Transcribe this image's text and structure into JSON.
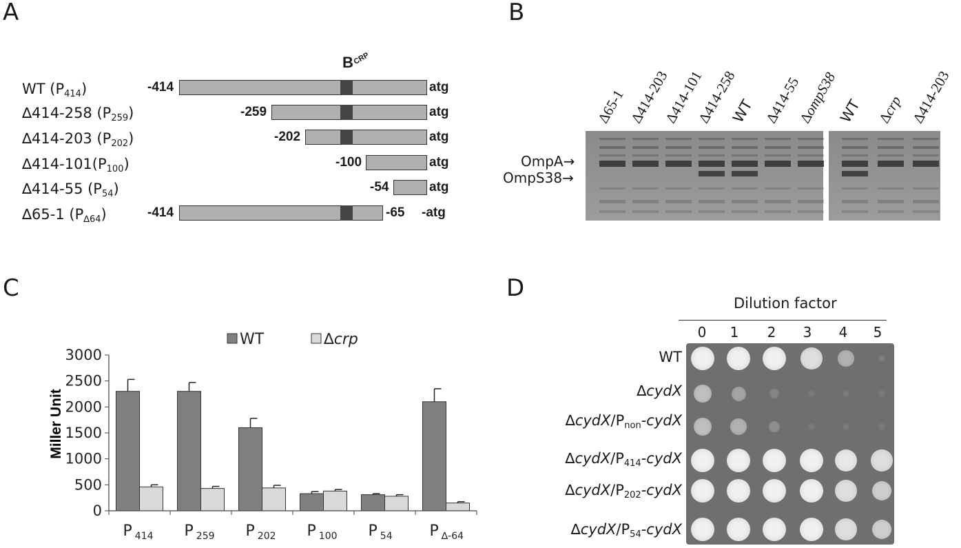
{
  "panels": {
    "a": "A",
    "b": "B",
    "c": "C",
    "d": "D"
  },
  "panel_a": {
    "crp_label": "B",
    "crp_sub": "CRP",
    "constructs": [
      {
        "name": "WT (P",
        "sub": "414",
        "tail": ")",
        "left_coord": "-414",
        "right_coord": "",
        "end": "atg"
      },
      {
        "name": "∆414-258 (P",
        "sub": "259",
        "tail": ")",
        "left_coord": "-259",
        "right_coord": "",
        "end": "atg"
      },
      {
        "name": "∆414-203 (P",
        "sub": "202",
        "tail": ")",
        "left_coord": "-202",
        "right_coord": "",
        "end": "atg"
      },
      {
        "name": "∆414-101(P",
        "sub": "100",
        "tail": ")",
        "left_coord": "-100",
        "right_coord": "",
        "end": "atg"
      },
      {
        "name": "∆414-55 (P",
        "sub": "54",
        "tail": ")",
        "left_coord": "-54",
        "right_coord": "",
        "end": "atg"
      },
      {
        "name": "∆65-1 (P",
        "sub": "∆64",
        "tail": ")",
        "left_coord": "-414",
        "right_coord": "-65",
        "end": "-atg"
      }
    ]
  },
  "panel_b": {
    "lanes_left": [
      "∆65-1",
      "∆414-203",
      "∆414-101",
      "∆414-258",
      "WT",
      "∆414-55",
      "∆ompS38"
    ],
    "lanes_right": [
      "WT",
      "∆crp",
      "∆414-203"
    ],
    "ompa_label": "OmpA",
    "omps38_label": "OmpS38"
  },
  "panel_d": {
    "dilution_title": "Dilution factor",
    "dilutions": [
      "0",
      "1",
      "2",
      "3",
      "4",
      "5"
    ],
    "strains": [
      {
        "pre": "WT",
        "sub": "",
        "post": ""
      },
      {
        "pre": "∆cydX",
        "sub": "",
        "post": ""
      },
      {
        "pre": "∆cydX/P",
        "sub": "non",
        "post": "-cydX"
      },
      {
        "pre": "∆cydX/P",
        "sub": "414",
        "post": "-cydX"
      },
      {
        "pre": "∆cydX/P",
        "sub": "202",
        "post": "-cydX"
      },
      {
        "pre": "∆cydX/P",
        "sub": "54",
        "post": "-cydX"
      }
    ],
    "growth": [
      [
        1,
        1,
        1,
        0.9,
        0.6,
        0.1
      ],
      [
        0.7,
        0.5,
        0.2,
        0.05,
        0.05,
        0.05
      ],
      [
        0.7,
        0.6,
        0.3,
        0.05,
        0.05,
        0.05
      ],
      [
        1,
        1,
        1,
        1,
        0.95,
        0.9
      ],
      [
        1,
        1,
        1,
        1,
        0.9,
        0.8
      ],
      [
        1,
        1,
        1,
        1,
        0.9,
        0.8
      ]
    ]
  },
  "chart_data": {
    "type": "bar",
    "categories": [
      "P414",
      "P259",
      "P202",
      "P100",
      "P54",
      "P∆-64"
    ],
    "category_labels": [
      {
        "base": "P",
        "sub": "414"
      },
      {
        "base": "P",
        "sub": "259"
      },
      {
        "base": "P",
        "sub": "202"
      },
      {
        "base": "P",
        "sub": "100"
      },
      {
        "base": "P",
        "sub": "54"
      },
      {
        "base": "P",
        "sub": "∆-64"
      }
    ],
    "series": [
      {
        "name": "WT",
        "values": [
          2300,
          2300,
          1600,
          330,
          310,
          2100
        ],
        "errors": [
          230,
          170,
          180,
          40,
          20,
          250
        ],
        "color": "#7f7f7f"
      },
      {
        "name": "∆crp",
        "values": [
          460,
          430,
          440,
          380,
          280,
          150
        ],
        "errors": [
          40,
          40,
          50,
          30,
          30,
          25
        ],
        "color": "#d9d9d9"
      }
    ],
    "ylabel": "Miller Unit",
    "ylim": [
      0,
      3000
    ],
    "yticks": [
      "0",
      "500",
      "1000",
      "1500",
      "2000",
      "2500",
      "3000"
    ],
    "grid": false,
    "legend_position": "top"
  }
}
